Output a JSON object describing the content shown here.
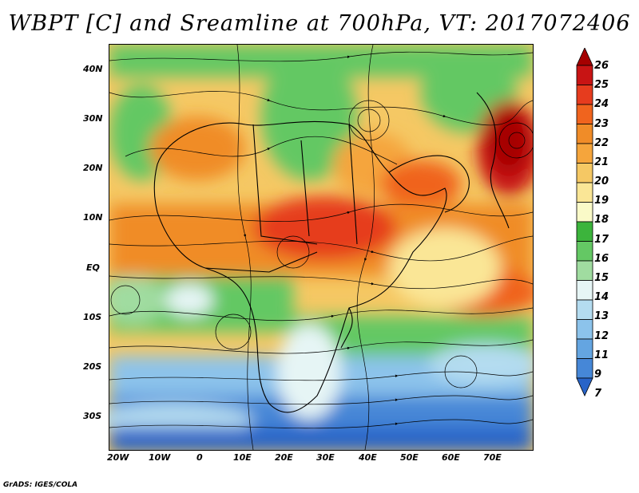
{
  "title": "WBPT [C] and Sreamline at 700hPa, VT: 2017072406",
  "credit": "GrADS: IGES/COLA",
  "lat_labels": [
    "40N",
    "30N",
    "20N",
    "10N",
    "EQ",
    "10S",
    "20S",
    "30S"
  ],
  "lon_labels": [
    "20W",
    "10W",
    "0",
    "10E",
    "20E",
    "30E",
    "40E",
    "50E",
    "60E",
    "70E"
  ],
  "colorbar": {
    "labels": [
      "26",
      "25",
      "24",
      "23",
      "22",
      "21",
      "20",
      "19",
      "18",
      "17",
      "16",
      "15",
      "14",
      "13",
      "12",
      "11",
      "9",
      "7"
    ],
    "colors": [
      "#a50000",
      "#c81414",
      "#e63c1e",
      "#f0641e",
      "#f08c28",
      "#f5a53c",
      "#f5c864",
      "#fae696",
      "#fafac8",
      "#3cb43c",
      "#64c864",
      "#a0dca0",
      "#e6f5f5",
      "#b4dcf0",
      "#8cc3eb",
      "#64a5e1",
      "#4687d7",
      "#2864c8"
    ]
  }
}
